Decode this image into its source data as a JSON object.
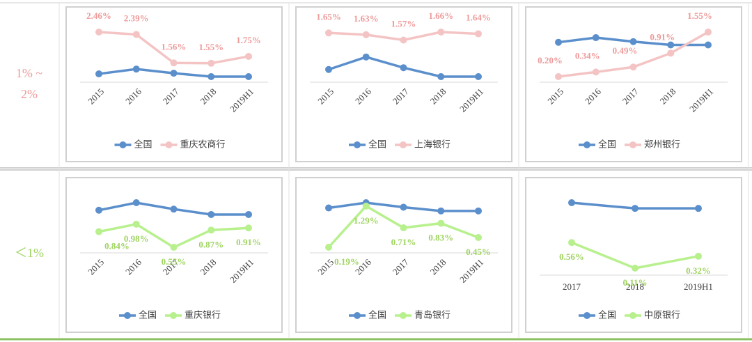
{
  "row_labels": [
    "1% ~ 2%",
    "＜1%"
  ],
  "chart_data": [
    {
      "type": "line",
      "categories": [
        "2015",
        "2016",
        "2017",
        "2018",
        "2019H1"
      ],
      "series": [
        {
          "name": "全国",
          "color": "#5b8fcc",
          "values": [
            1.24,
            1.38,
            1.26,
            1.16,
            1.16
          ]
        },
        {
          "name": "重庆农商行",
          "color": "#f4c4c4",
          "label_color": "#ee9a9a",
          "values": [
            2.46,
            2.39,
            1.56,
            1.55,
            1.75
          ],
          "value_labels": [
            "2.46%",
            "2.39%",
            "1.56%",
            "1.55%",
            "1.75%"
          ]
        }
      ]
    },
    {
      "type": "line",
      "categories": [
        "2015",
        "2016",
        "2017",
        "2018",
        "2019H1"
      ],
      "series": [
        {
          "name": "全国",
          "color": "#5b8fcc",
          "values": [
            1.24,
            1.38,
            1.26,
            1.16,
            1.16
          ]
        },
        {
          "name": "上海银行",
          "color": "#f4c4c4",
          "label_color": "#ee9a9a",
          "values": [
            1.65,
            1.63,
            1.57,
            1.66,
            1.64
          ],
          "value_labels": [
            "1.65%",
            "1.63%",
            "1.57%",
            "1.66%",
            "1.64%"
          ]
        }
      ]
    },
    {
      "type": "line",
      "categories": [
        "2015",
        "2016",
        "2017",
        "2018",
        "2019H1"
      ],
      "series": [
        {
          "name": "全国",
          "color": "#5b8fcc",
          "values": [
            1.24,
            1.38,
            1.26,
            1.16,
            1.16
          ]
        },
        {
          "name": "郑州银行",
          "color": "#f4c4c4",
          "label_color": "#ee9a9a",
          "values": [
            0.2,
            0.34,
            0.49,
            0.91,
            1.55
          ],
          "value_labels": [
            "0.20%",
            "0.34%",
            "0.49%",
            "0.91%",
            "1.55%"
          ]
        }
      ]
    },
    {
      "type": "line",
      "categories": [
        "2015",
        "2016",
        "2017",
        "2018",
        "2019H1"
      ],
      "series": [
        {
          "name": "全国",
          "color": "#5b8fcc",
          "values": [
            1.24,
            1.38,
            1.26,
            1.16,
            1.16
          ]
        },
        {
          "name": "重庆银行",
          "color": "#b8f08e",
          "label_color": "#9fd460",
          "values": [
            0.84,
            0.98,
            0.55,
            0.87,
            0.91
          ],
          "value_labels": [
            "0.84%",
            "0.98%",
            "0.55%",
            "0.87%",
            "0.91%"
          ]
        }
      ]
    },
    {
      "type": "line",
      "categories": [
        "2015",
        "2016",
        "2017",
        "2018",
        "2019H1"
      ],
      "series": [
        {
          "name": "全国",
          "color": "#5b8fcc",
          "values": [
            1.24,
            1.38,
            1.26,
            1.16,
            1.16
          ]
        },
        {
          "name": "青岛银行",
          "color": "#b8f08e",
          "label_color": "#9fd460",
          "values": [
            0.19,
            1.29,
            0.71,
            0.83,
            0.45
          ],
          "value_labels": [
            "0.19%",
            "1.29%",
            "0.71%",
            "0.83%",
            "0.45%"
          ]
        }
      ]
    },
    {
      "type": "line",
      "categories": [
        "2017",
        "2018",
        "2019H1"
      ],
      "series": [
        {
          "name": "全国",
          "color": "#5b8fcc",
          "values": [
            1.26,
            1.16,
            1.16
          ]
        },
        {
          "name": "中原银行",
          "color": "#b8f08e",
          "label_color": "#9fd460",
          "values": [
            0.56,
            0.11,
            0.32
          ],
          "value_labels": [
            "0.56%",
            "0.11%",
            "0.32%"
          ]
        }
      ]
    }
  ]
}
